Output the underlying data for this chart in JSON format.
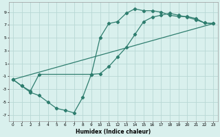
{
  "xlabel": "Humidex (Indice chaleur)",
  "bg_color": "#d9f0ed",
  "line_color": "#2e7d6e",
  "grid_color": "#b8d8d4",
  "xlim": [
    -0.5,
    23.5
  ],
  "ylim": [
    -8,
    10.5
  ],
  "xticks": [
    0,
    1,
    2,
    3,
    4,
    5,
    6,
    7,
    8,
    9,
    10,
    11,
    12,
    13,
    14,
    15,
    16,
    17,
    18,
    19,
    20,
    21,
    22,
    23
  ],
  "yticks": [
    -7,
    -5,
    -3,
    -1,
    1,
    3,
    5,
    7,
    9
  ],
  "curve1_x": [
    0,
    1,
    2,
    3,
    4,
    5,
    6,
    7,
    8,
    9,
    10,
    11,
    12,
    13,
    14,
    15,
    16,
    17,
    18,
    19,
    20,
    21,
    22,
    23
  ],
  "curve1_y": [
    -1.5,
    -2.5,
    -3.5,
    -4.0,
    -5.0,
    -6.0,
    -6.3,
    -6.7,
    -4.3,
    -0.7,
    5.0,
    7.2,
    7.5,
    8.8,
    9.5,
    9.2,
    9.2,
    9.0,
    8.5,
    8.3,
    8.3,
    8.0,
    7.3,
    7.2
  ],
  "curve2_x": [
    0,
    1,
    2,
    3,
    9,
    10,
    11,
    12,
    13,
    14,
    15,
    16,
    17,
    18,
    19,
    20,
    21,
    22,
    23
  ],
  "curve2_y": [
    -1.5,
    -2.5,
    -3.3,
    -0.7,
    -0.7,
    -0.6,
    0.5,
    2.0,
    3.5,
    5.5,
    7.5,
    8.2,
    8.5,
    8.8,
    8.5,
    8.2,
    7.8,
    7.3,
    7.2
  ],
  "curve3_x": [
    0,
    23
  ],
  "curve3_y": [
    -1.5,
    7.2
  ],
  "marker_size": 2.2,
  "line_width": 0.9
}
